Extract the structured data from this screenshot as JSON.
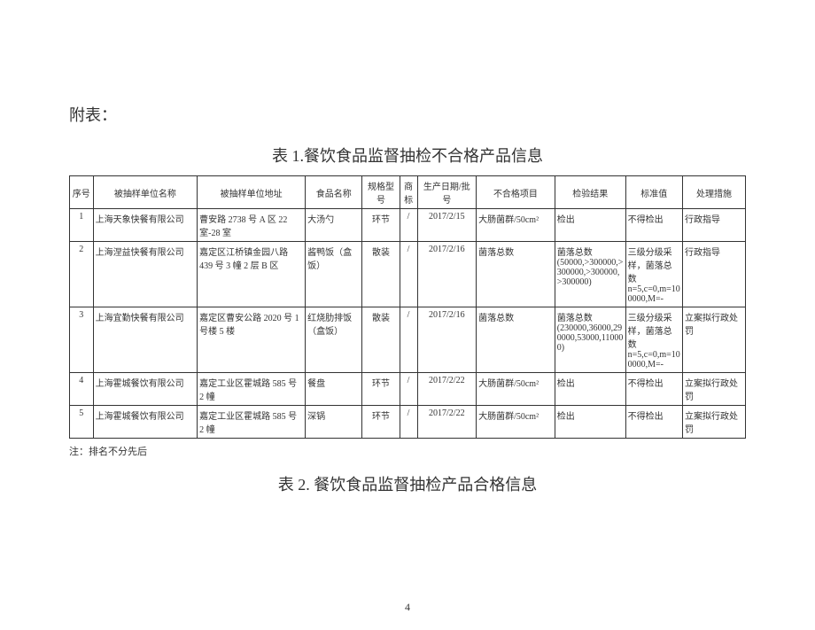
{
  "heading": "附表：",
  "table1": {
    "title": "表 1.餐饮食品监督抽检不合格产品信息",
    "columns": [
      "序号",
      "被抽样单位名称",
      "被抽样单位地址",
      "食品名称",
      "规格型号",
      "商标",
      "生产日期/批号",
      "不合格项目",
      "检验结果",
      "标准值",
      "处理措施"
    ],
    "rows": [
      [
        "1",
        "上海天象快餐有限公司",
        "曹安路 2738 号 A 区 22 室-28 室",
        "大汤勺",
        "环节",
        "/",
        "2017/2/15",
        "大肠菌群/50cm²",
        "检出",
        "不得检出",
        "行政指导"
      ],
      [
        "2",
        "上海涅益快餐有限公司",
        "嘉定区江桥镇金园八路 439 号 3 幢 2 层 B 区",
        "酱鸭饭（盒饭）",
        "散装",
        "/",
        "2017/2/16",
        "菌落总数",
        "菌落总数(50000,>300000,>300000,>300000,>300000)",
        "三级分级采样，菌落总数n=5,c=0,m=100000,M=-",
        "行政指导"
      ],
      [
        "3",
        "上海宜勤快餐有限公司",
        "嘉定区曹安公路 2020 号 1 号楼 5 楼",
        "红烧肋排饭（盒饭）",
        "散装",
        "/",
        "2017/2/16",
        "菌落总数",
        "菌落总数(230000,36000,290000,53000,110000)",
        "三级分级采样，菌落总数n=5,c=0,m=100000,M=-",
        "立案拟行政处罚"
      ],
      [
        "4",
        "上海霍城餐饮有限公司",
        "嘉定工业区霍城路 585 号 2 幢",
        "餐盘",
        "环节",
        "/",
        "2017/2/22",
        "大肠菌群/50cm²",
        "检出",
        "不得检出",
        "立案拟行政处罚"
      ],
      [
        "5",
        "上海霍城餐饮有限公司",
        "嘉定工业区霍城路 585 号 2 幢",
        "深锅",
        "环节",
        "/",
        "2017/2/22",
        "大肠菌群/50cm²",
        "检出",
        "不得检出",
        "立案拟行政处罚"
      ]
    ]
  },
  "note": "注：排名不分先后",
  "table2_title": "表 2. 餐饮食品监督抽检产品合格信息",
  "page_number": "4"
}
